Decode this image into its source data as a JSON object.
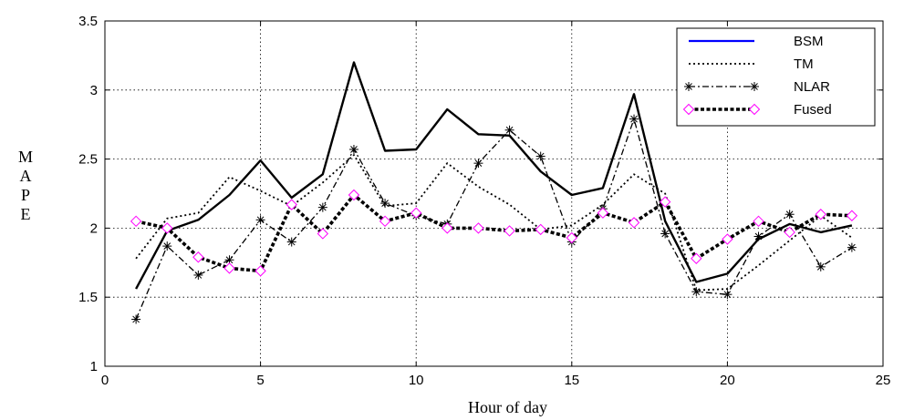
{
  "chart_data": {
    "type": "line",
    "title": "",
    "xlabel": "Hour of day",
    "ylabel": "MAPE",
    "xlim": [
      0,
      25
    ],
    "ylim": [
      1,
      3.5
    ],
    "xticks": [
      0,
      5,
      10,
      15,
      20,
      25
    ],
    "yticks": [
      1,
      1.5,
      2,
      2.5,
      3,
      3.5
    ],
    "grid": true,
    "legend_position": "top-right",
    "x": [
      1,
      2,
      3,
      4,
      5,
      6,
      7,
      8,
      9,
      10,
      11,
      12,
      13,
      14,
      15,
      16,
      17,
      18,
      19,
      20,
      21,
      22,
      23,
      24
    ],
    "series": [
      {
        "name": "BSM",
        "style": "solid",
        "legend_color": "#0000ff",
        "values": [
          1.56,
          1.98,
          2.06,
          2.24,
          2.49,
          2.22,
          2.39,
          3.2,
          2.56,
          2.57,
          2.86,
          2.68,
          2.67,
          2.41,
          2.24,
          2.29,
          2.97,
          2.05,
          1.61,
          1.67,
          1.92,
          2.03,
          1.97,
          2.02
        ]
      },
      {
        "name": "TM",
        "style": "dotted",
        "legend_color": "#000000",
        "values": [
          1.78,
          2.07,
          2.11,
          2.37,
          2.27,
          2.16,
          2.33,
          2.53,
          2.16,
          2.18,
          2.47,
          2.3,
          2.17,
          1.99,
          2.02,
          2.17,
          2.39,
          2.25,
          1.55,
          1.56,
          1.73,
          1.91,
          2.09,
          1.93
        ]
      },
      {
        "name": "NLAR",
        "style": "dashdot",
        "marker": "star",
        "legend_color": "#000000",
        "values": [
          1.34,
          1.87,
          1.66,
          1.77,
          2.06,
          1.9,
          2.15,
          2.57,
          2.18,
          2.09,
          2.03,
          2.47,
          2.71,
          2.52,
          1.9,
          2.14,
          2.79,
          1.96,
          1.54,
          1.52,
          1.94,
          2.1,
          1.72,
          1.86
        ]
      },
      {
        "name": "Fused",
        "style": "dashed",
        "marker": "diamond",
        "marker_color": "#ff00ff",
        "legend_color": "#000000",
        "values": [
          2.05,
          2.0,
          1.79,
          1.71,
          1.69,
          2.17,
          1.96,
          2.24,
          2.05,
          2.11,
          2.0,
          2.0,
          1.98,
          1.99,
          1.93,
          2.11,
          2.04,
          2.19,
          1.78,
          1.92,
          2.05,
          1.97,
          2.1,
          2.09
        ]
      }
    ]
  }
}
